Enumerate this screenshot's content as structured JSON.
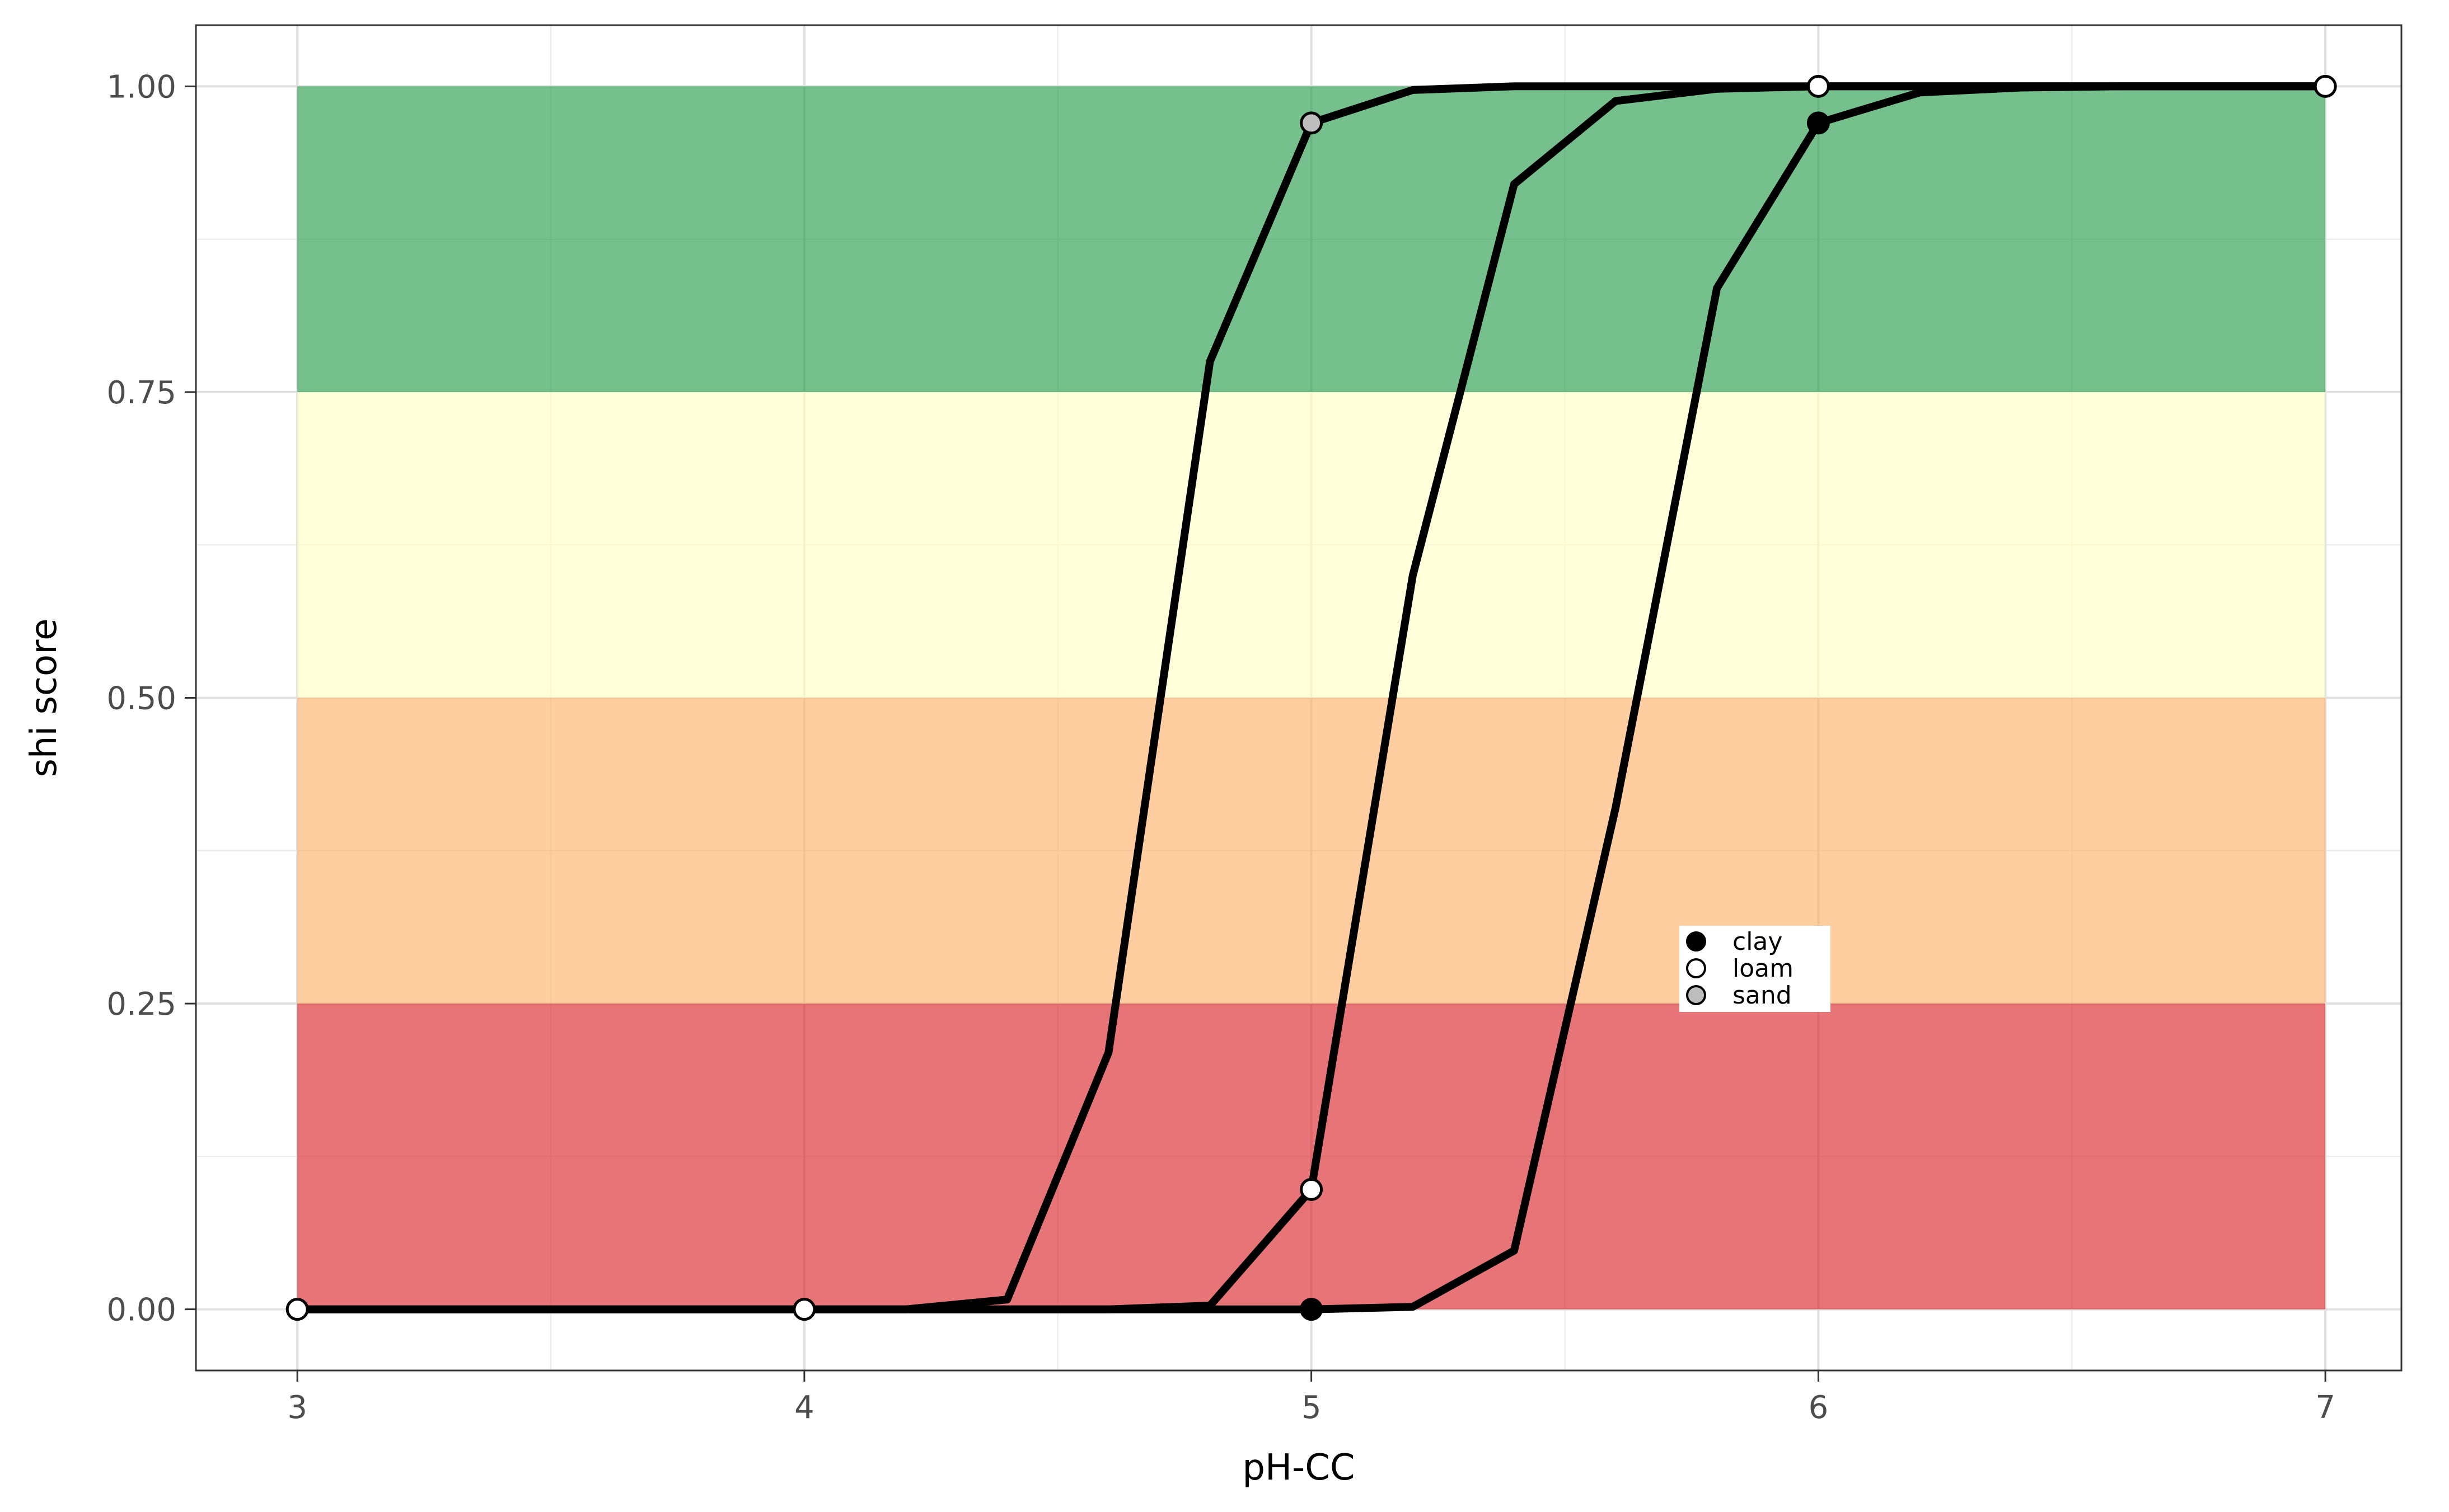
{
  "chart_data": {
    "type": "line",
    "xlabel": "pH-CC",
    "ylabel": "shi score",
    "xlim": [
      2.8,
      7.15
    ],
    "ylim": [
      -0.05,
      1.05
    ],
    "x_ticks": [
      "3",
      "4",
      "5",
      "6",
      "7"
    ],
    "y_ticks": [
      "0.00",
      "0.25",
      "0.50",
      "0.75",
      "1.00"
    ],
    "grid": true,
    "legend_position": "inside-center-right",
    "bands": [
      {
        "from": 0.0,
        "to": 0.25,
        "color": "#d7191c"
      },
      {
        "from": 0.25,
        "to": 0.5,
        "color": "#fdae61"
      },
      {
        "from": 0.5,
        "to": 0.75,
        "color": "#ffffc0"
      },
      {
        "from": 0.75,
        "to": 1.0,
        "color": "#1a9641"
      }
    ],
    "band_x_range": [
      3,
      7
    ],
    "series": [
      {
        "name": "sand",
        "fill": "#bdbdbd",
        "line_x": [
          3.0,
          3.2,
          3.4,
          3.6,
          3.8,
          4.0,
          4.2,
          4.4,
          4.6,
          4.8,
          5.0,
          5.2,
          5.4,
          5.6,
          5.8,
          6.0,
          6.2,
          6.4,
          6.6,
          6.8,
          7.0
        ],
        "line_y": [
          0.0,
          0.0,
          0.0,
          0.0,
          0.0,
          0.0,
          0.0,
          0.008,
          0.21,
          0.775,
          0.97,
          0.997,
          1.0,
          1.0,
          1.0,
          1.0,
          1.0,
          1.0,
          1.0,
          1.0,
          1.0
        ],
        "points_x": [
          5.0
        ],
        "points_y": [
          0.97
        ]
      },
      {
        "name": "loam",
        "fill": "#ffffff",
        "line_x": [
          3.0,
          3.2,
          3.4,
          3.6,
          3.8,
          4.0,
          4.2,
          4.4,
          4.6,
          4.8,
          5.0,
          5.2,
          5.4,
          5.6,
          5.8,
          6.0,
          6.2,
          6.4,
          6.6,
          6.8,
          7.0
        ],
        "line_y": [
          0.0,
          0.0,
          0.0,
          0.0,
          0.0,
          0.0,
          0.0,
          0.0,
          0.0,
          0.003,
          0.098,
          0.6,
          0.92,
          0.988,
          0.998,
          1.0,
          1.0,
          1.0,
          1.0,
          1.0,
          1.0
        ],
        "points_x": [
          3.0,
          4.0,
          5.0,
          6.0,
          7.0
        ],
        "points_y": [
          0.0,
          0.0,
          0.098,
          1.0,
          1.0
        ]
      },
      {
        "name": "clay",
        "fill": "#000000",
        "line_x": [
          3.0,
          3.2,
          3.4,
          3.6,
          3.8,
          4.0,
          4.2,
          4.4,
          4.6,
          4.8,
          5.0,
          5.2,
          5.4,
          5.6,
          5.8,
          6.0,
          6.2,
          6.4,
          6.6,
          6.8,
          7.0
        ],
        "line_y": [
          0.0,
          0.0,
          0.0,
          0.0,
          0.0,
          0.0,
          0.0,
          0.0,
          0.0,
          0.0,
          0.0,
          0.002,
          0.048,
          0.41,
          0.835,
          0.97,
          0.995,
          0.999,
          1.0,
          1.0,
          1.0
        ],
        "points_x": [
          5.0,
          6.0
        ],
        "points_y": [
          0.0,
          0.97
        ]
      }
    ],
    "legend": [
      {
        "label": "clay",
        "fill": "#000000"
      },
      {
        "label": "loam",
        "fill": "#ffffff"
      },
      {
        "label": "sand",
        "fill": "#bdbdbd"
      }
    ]
  }
}
